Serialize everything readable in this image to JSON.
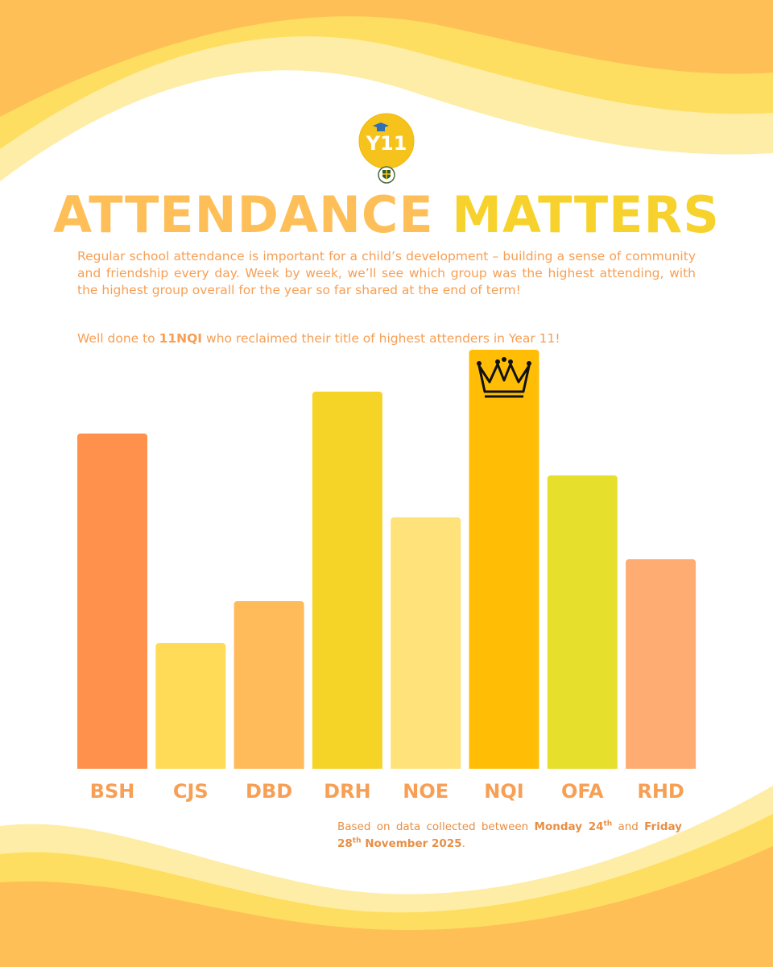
{
  "logo": {
    "text": "Y11",
    "circle_color": "#F6C31D",
    "text_color": "#ffffff"
  },
  "title": {
    "part1": "ATTENDANCE",
    "part2": "MATTERS"
  },
  "intro": "Regular school attendance is important for a child’s development – building a sense of community and friendship every day. Week by week, we’ll see which group was the highest attending, with the highest group overall for the year so far shared at the end of term!",
  "well_done": {
    "prefix": "Well done to ",
    "group": "11NQI",
    "suffix": " who reclaimed their title of highest attenders in Year 11!"
  },
  "chart_data": {
    "type": "bar",
    "title": "",
    "xlabel": "",
    "ylabel": "",
    "categories": [
      "BSH",
      "CJS",
      "DBD",
      "DRH",
      "NOE",
      "NQI",
      "OFA",
      "RHD"
    ],
    "values": [
      80,
      30,
      40,
      90,
      60,
      100,
      70,
      50
    ],
    "colors": [
      "#FF914D",
      "#FFDB58",
      "#FFBA59",
      "#F5D327",
      "#FFE27A",
      "#FFBD06",
      "#E6DF2C",
      "#FFAC72"
    ],
    "ylim": [
      0,
      100
    ],
    "highlight": "NQI",
    "highlight_icon": "crown-icon"
  },
  "footnote": {
    "line1_prefix": "Based on data collected between ",
    "start_day": "Monday 24",
    "start_sup": "th",
    "line1_suffix": " and",
    "end_day": "Friday 28",
    "end_sup": "th",
    "end_rest": " November 2025",
    "end_punct": "."
  },
  "colors": {
    "accent_orange": "#F79F54",
    "wave_orange": "#FFBF57",
    "wave_yellow": "#FEDE61",
    "wave_pale": "#FEEDA7"
  }
}
